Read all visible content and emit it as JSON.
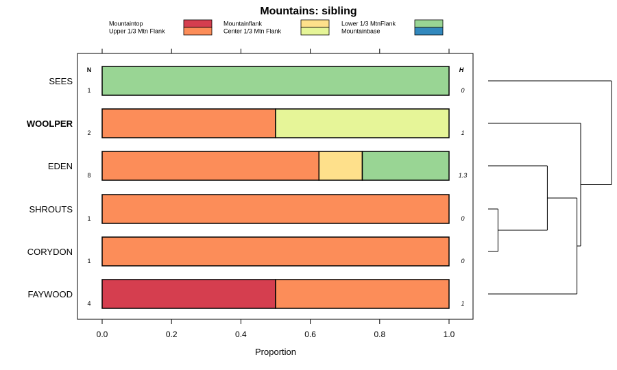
{
  "chart_data": {
    "type": "bar",
    "orientation": "horizontal",
    "stacked": true,
    "title": "Mountains: sibling",
    "xlabel": "Proportion",
    "xlim": [
      0,
      1
    ],
    "x_ticks": [
      "0.0",
      "0.2",
      "0.4",
      "0.6",
      "0.8",
      "1.0"
    ],
    "n_header": "N",
    "h_header": "H",
    "legend": [
      {
        "name": "Mountaintop",
        "color": "#D53E4F"
      },
      {
        "name": "Upper 1/3 Mtn Flank",
        "color": "#FC8D59"
      },
      {
        "name": "Mountainflank",
        "color": "#FEE08B"
      },
      {
        "name": "Center 1/3 Mtn Flank",
        "color": "#E6F598"
      },
      {
        "name": "Lower 1/3 MtnFlank",
        "color": "#99D594"
      },
      {
        "name": "Mountainbase",
        "color": "#3288BD"
      }
    ],
    "categories": [
      "SEES",
      "WOOLPER",
      "EDEN",
      "SHROUTS",
      "CORYDON",
      "FAYWOOD"
    ],
    "highlighted_category": "WOOLPER",
    "n_values": [
      "1",
      "2",
      "8",
      "1",
      "1",
      "4"
    ],
    "h_values": [
      "0",
      "1",
      "1.3",
      "0",
      "0",
      "1"
    ],
    "rows": [
      [
        0,
        0,
        0,
        0,
        1,
        0
      ],
      [
        0,
        0.5,
        0,
        0.5,
        0,
        0
      ],
      [
        0,
        0.625,
        0.125,
        0,
        0.25,
        0
      ],
      [
        0,
        1,
        0,
        0,
        0,
        0
      ],
      [
        0,
        1,
        0,
        0,
        0,
        0
      ],
      [
        0.5,
        0.5,
        0,
        0,
        0,
        0
      ]
    ],
    "dendrogram": {
      "leaf_order": [
        "SEES",
        "WOOLPER",
        "EDEN",
        "SHROUTS",
        "CORYDON",
        "FAYWOOD"
      ],
      "merges": [
        {
          "a": "SHROUTS",
          "b": "CORYDON",
          "height": 0.08
        },
        {
          "a": "EDEN",
          "b": "SHROUTS+CORYDON",
          "height": 0.48
        },
        {
          "a": "EDEN+SHROUTS+CORYDON",
          "b": "FAYWOOD",
          "height": 0.72
        },
        {
          "a": "WOOLPER",
          "b": "EDEN+SHROUTS+CORYDON+FAYWOOD",
          "height": 0.75
        },
        {
          "a": "SEES",
          "b": "WOOLPER+EDEN+SHROUTS+CORYDON+FAYWOOD",
          "height": 1.0
        }
      ]
    }
  }
}
